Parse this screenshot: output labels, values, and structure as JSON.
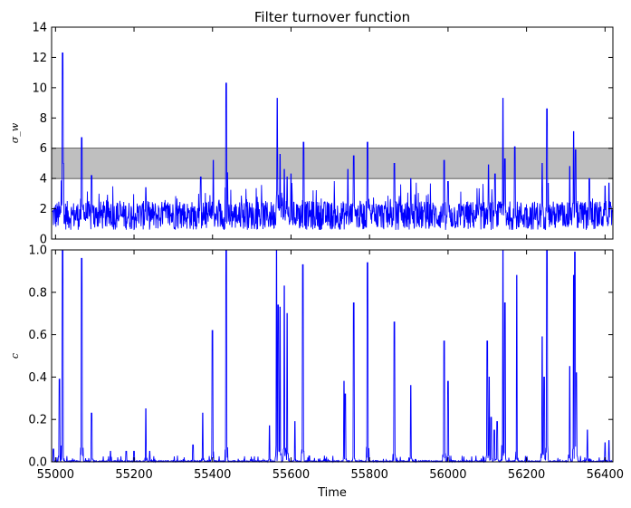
{
  "chart_data": {
    "title": "Filter turnover function",
    "xlabel": "Time",
    "x_range": [
      54990,
      56420
    ],
    "x_ticks": [
      55000,
      55200,
      55400,
      55600,
      55800,
      56000,
      56200,
      56400
    ],
    "line_color": "#0000ff",
    "panels": [
      {
        "id": "top",
        "type": "line",
        "ylabel": "σ_w",
        "ylim": [
          0,
          14
        ],
        "y_ticks": [
          0,
          2,
          4,
          6,
          8,
          10,
          12,
          14
        ],
        "band": {
          "y0": 4,
          "y1": 6,
          "color": "#bfbfbf"
        },
        "baseline": 1.2,
        "noise": 1.0,
        "spikes": [
          [
            55018,
            12.3
          ],
          [
            55020,
            5.0
          ],
          [
            55067,
            6.7
          ],
          [
            55092,
            4.2
          ],
          [
            55230,
            3.4
          ],
          [
            55370,
            4.1
          ],
          [
            55402,
            5.2
          ],
          [
            55435,
            10.3
          ],
          [
            55565,
            9.3
          ],
          [
            55572,
            5.6
          ],
          [
            55583,
            4.6
          ],
          [
            55590,
            4.1
          ],
          [
            55600,
            4.3
          ],
          [
            55632,
            6.4
          ],
          [
            55745,
            4.6
          ],
          [
            55760,
            5.5
          ],
          [
            55795,
            6.4
          ],
          [
            55863,
            5.0
          ],
          [
            55905,
            4.0
          ],
          [
            55990,
            5.2
          ],
          [
            56000,
            3.8
          ],
          [
            56103,
            4.9
          ],
          [
            56120,
            4.3
          ],
          [
            56140,
            9.3
          ],
          [
            56145,
            5.3
          ],
          [
            56170,
            6.1
          ],
          [
            56240,
            5.0
          ],
          [
            56252,
            8.6
          ],
          [
            56310,
            4.8
          ],
          [
            56320,
            7.1
          ],
          [
            56325,
            5.9
          ],
          [
            56360,
            4.0
          ],
          [
            56400,
            3.5
          ],
          [
            56410,
            3.7
          ]
        ]
      },
      {
        "id": "bottom",
        "type": "line",
        "ylabel": "c",
        "ylim": [
          0,
          1
        ],
        "y_ticks": [
          0.0,
          0.2,
          0.4,
          0.6,
          0.8,
          1.0
        ],
        "spikes": [
          [
            54995,
            0.06
          ],
          [
            55010,
            0.39
          ],
          [
            55018,
            1.0
          ],
          [
            55067,
            0.96
          ],
          [
            55092,
            0.23
          ],
          [
            55140,
            0.05
          ],
          [
            55180,
            0.05
          ],
          [
            55200,
            0.05
          ],
          [
            55230,
            0.25
          ],
          [
            55240,
            0.05
          ],
          [
            55350,
            0.08
          ],
          [
            55375,
            0.23
          ],
          [
            55400,
            0.62
          ],
          [
            55435,
            1.0
          ],
          [
            55545,
            0.17
          ],
          [
            55563,
            1.0
          ],
          [
            55567,
            0.74
          ],
          [
            55572,
            0.73
          ],
          [
            55583,
            0.83
          ],
          [
            55590,
            0.7
          ],
          [
            55610,
            0.19
          ],
          [
            55630,
            0.93
          ],
          [
            55735,
            0.38
          ],
          [
            55738,
            0.32
          ],
          [
            55760,
            0.75
          ],
          [
            55795,
            0.94
          ],
          [
            55863,
            0.66
          ],
          [
            55905,
            0.36
          ],
          [
            55990,
            0.57
          ],
          [
            56000,
            0.38
          ],
          [
            56100,
            0.57
          ],
          [
            56105,
            0.4
          ],
          [
            56110,
            0.21
          ],
          [
            56118,
            0.15
          ],
          [
            56125,
            0.19
          ],
          [
            56140,
            1.0
          ],
          [
            56145,
            0.75
          ],
          [
            56175,
            0.88
          ],
          [
            56240,
            0.59
          ],
          [
            56245,
            0.4
          ],
          [
            56252,
            1.0
          ],
          [
            56310,
            0.45
          ],
          [
            56320,
            0.88
          ],
          [
            56323,
            0.99
          ],
          [
            56327,
            0.42
          ],
          [
            56355,
            0.15
          ],
          [
            56400,
            0.09
          ],
          [
            56410,
            0.1
          ]
        ]
      }
    ]
  }
}
